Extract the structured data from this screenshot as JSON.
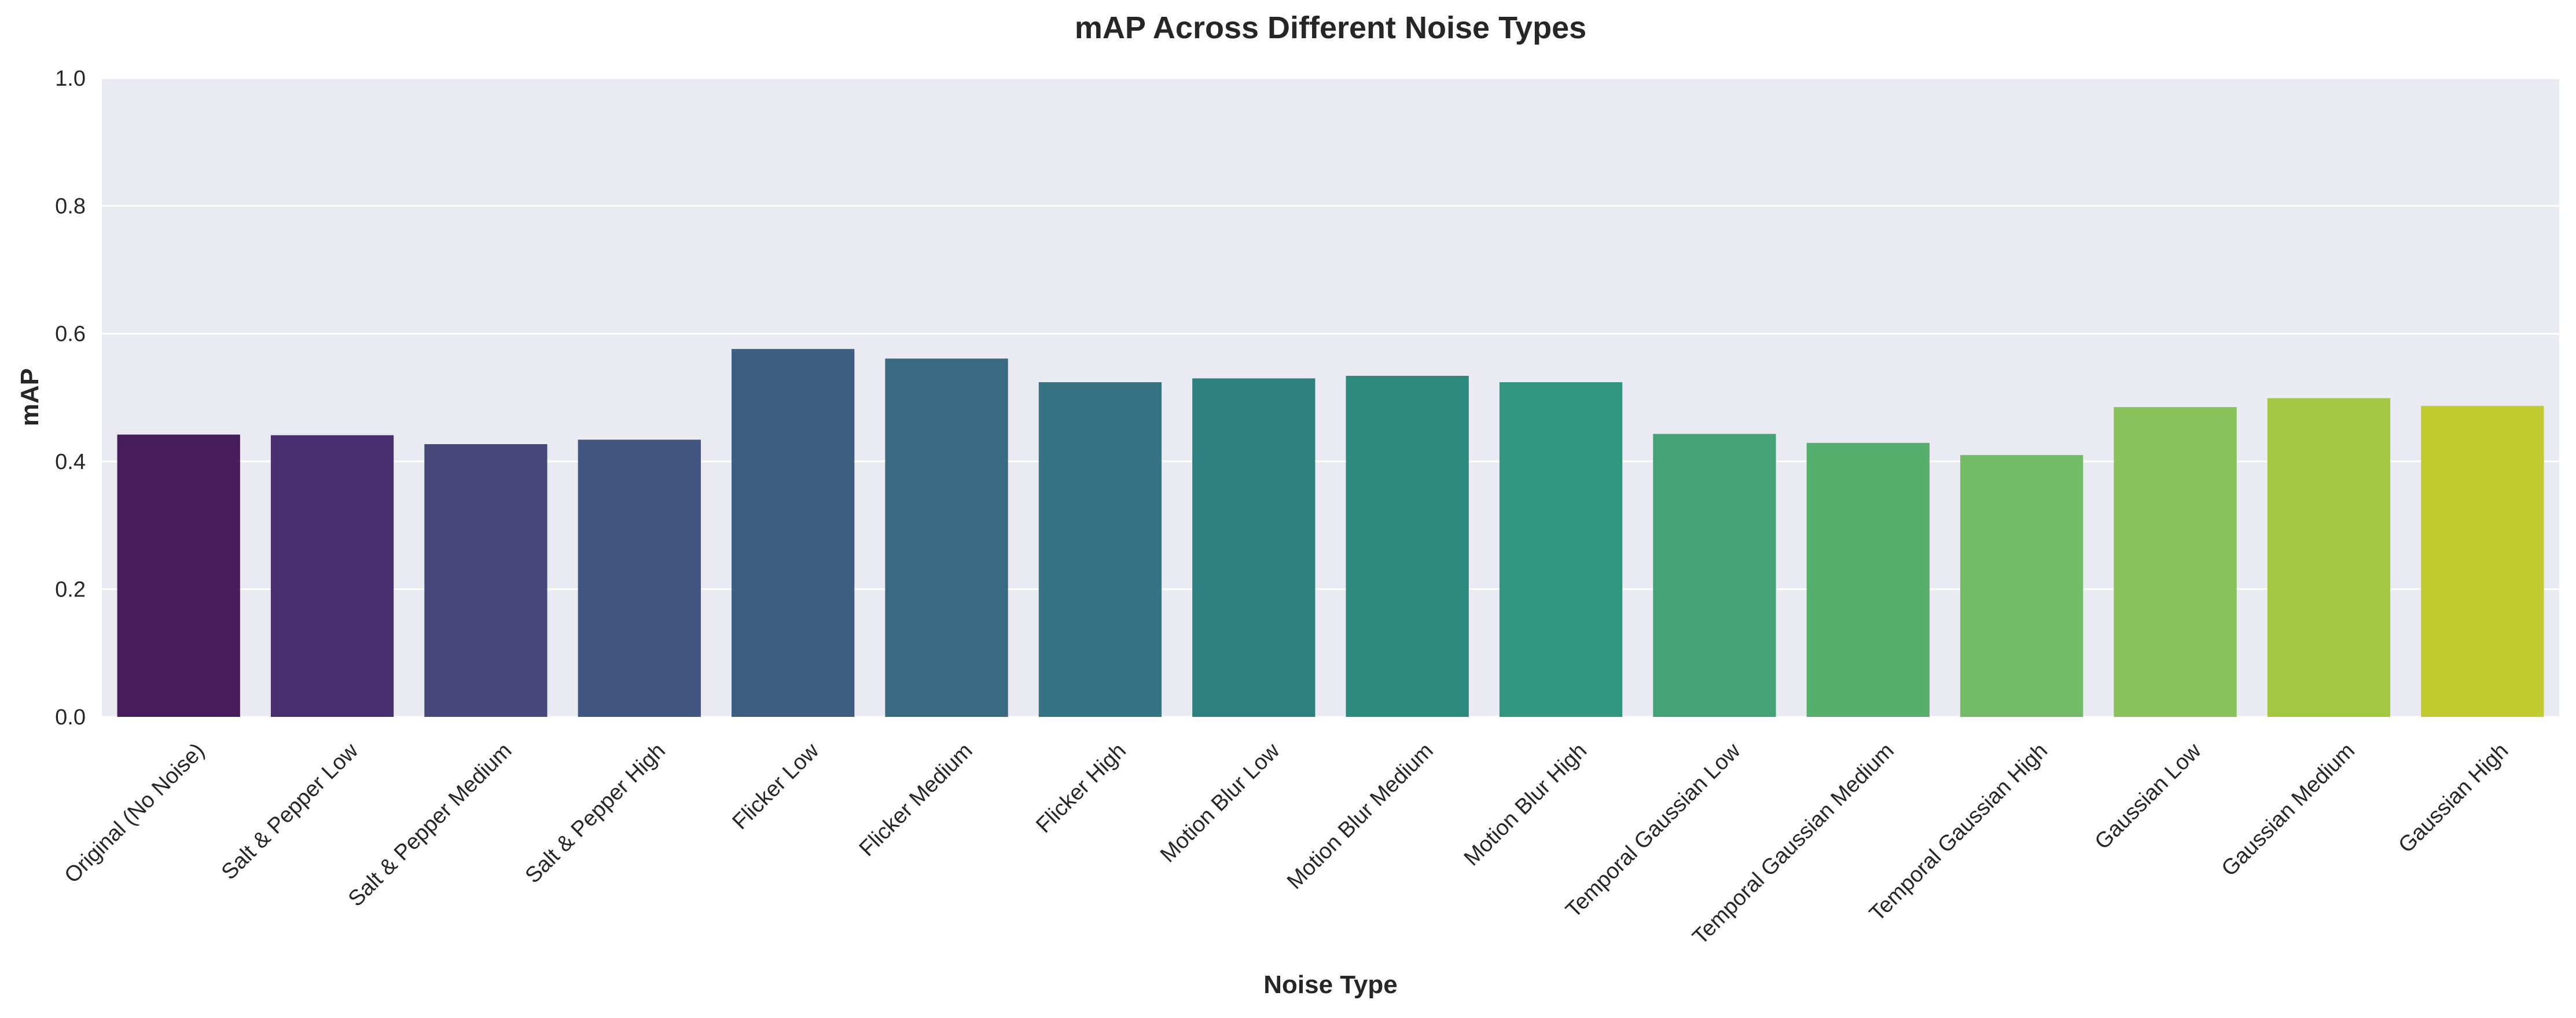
{
  "chart_data": {
    "type": "bar",
    "title": "mAP Across Different Noise Types",
    "xlabel": "Noise Type",
    "ylabel": "mAP",
    "ylim": [
      0,
      1.0
    ],
    "yticks": [
      "0.0",
      "0.2",
      "0.4",
      "0.6",
      "0.8",
      "1.0"
    ],
    "grid": true,
    "categories": [
      "Original (No Noise)",
      "Salt & Pepper Low",
      "Salt & Pepper Medium",
      "Salt & Pepper High",
      "Flicker Low",
      "Flicker Medium",
      "Flicker High",
      "Motion Blur Low",
      "Motion Blur Medium",
      "Motion Blur High",
      "Temporal Gaussian Low",
      "Temporal Gaussian Medium",
      "Temporal Gaussian High",
      "Gaussian Low",
      "Gaussian Medium",
      "Gaussian High"
    ],
    "values": [
      0.442,
      0.441,
      0.427,
      0.434,
      0.576,
      0.561,
      0.524,
      0.53,
      0.534,
      0.524,
      0.443,
      0.429,
      0.41,
      0.485,
      0.499,
      0.487
    ],
    "colors": [
      "#481D5D",
      "#482F6F",
      "#47477C",
      "#435681",
      "#3D5E81",
      "#386A81",
      "#377483",
      "#2E7F7F",
      "#2E897E",
      "#32957D",
      "#43A276",
      "#57AF6E",
      "#72BC68",
      "#89C25A",
      "#A4C744",
      "#C0CB30"
    ],
    "background": "#EAEAF2"
  }
}
